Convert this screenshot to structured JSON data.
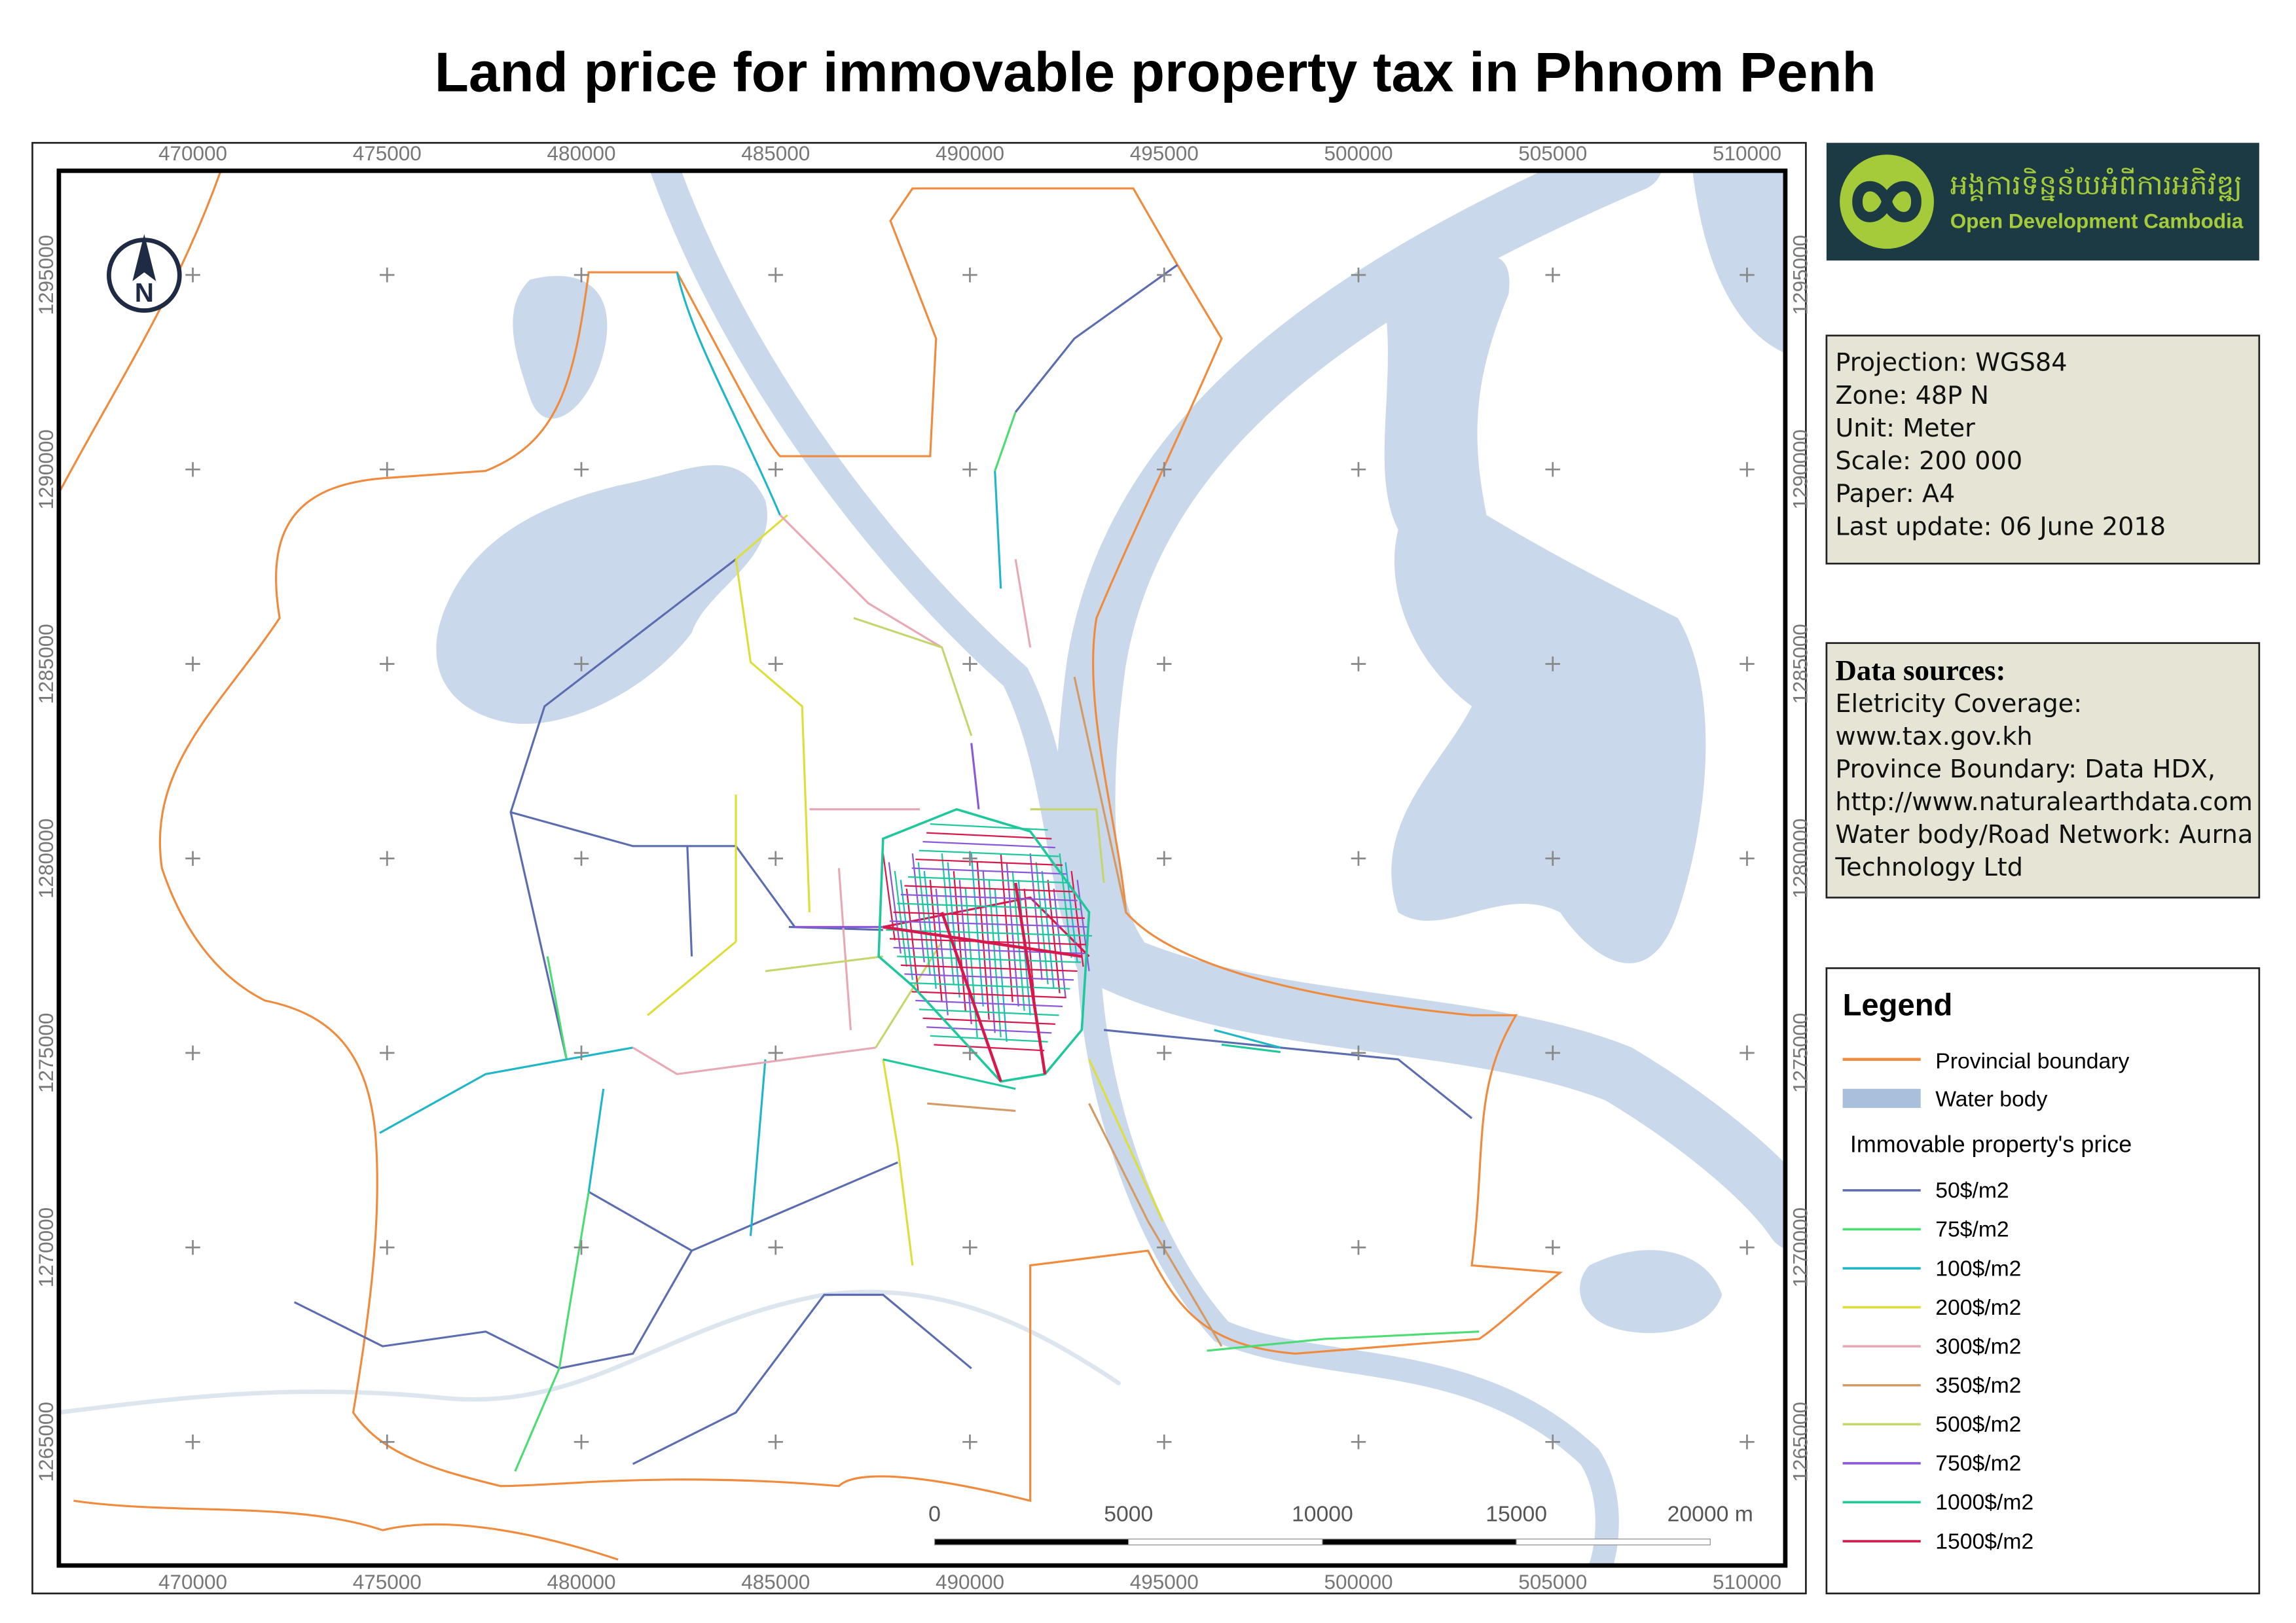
{
  "title": "Land price for immovable property tax in Phnom Penh",
  "map": {
    "x_ticks": [
      470000,
      475000,
      480000,
      485000,
      490000,
      495000,
      500000,
      505000,
      510000
    ],
    "y_ticks": [
      1265000,
      1270000,
      1275000,
      1280000,
      1285000,
      1290000,
      1295000
    ]
  },
  "logo": {
    "khmer": "អង្គការទិន្នន័យអំពីការអភិវឌ្ឍ",
    "name": "Open Development Cambodia"
  },
  "info": [
    "Projection: WGS84",
    "Zone: 48P N",
    "Unit: Meter",
    "Scale: 200 000",
    "Paper: A4",
    "Last update: 06 June 2018"
  ],
  "sources": {
    "title": "Data sources:",
    "lines": [
      "Eletricity Coverage:",
      "www.tax.gov.kh",
      "Province Boundary: Data HDX,",
      "http://www.naturalearthdata.com",
      "Water body/Road Network: Aurna",
      "Technology Ltd"
    ]
  },
  "legend": {
    "title": "Legend",
    "boundary": {
      "label": "Provincial boundary",
      "color": "#f08a3c"
    },
    "water": {
      "label": "Water body",
      "color": "#a9bfdc"
    },
    "subtitle": "Immovable property's price",
    "prices": [
      {
        "label": "50$/m2",
        "color": "#5b6db0"
      },
      {
        "label": "75$/m2",
        "color": "#4cdc74"
      },
      {
        "label": "100$/m2",
        "color": "#1fb6c8"
      },
      {
        "label": "200$/m2",
        "color": "#dede3a"
      },
      {
        "label": "300$/m2",
        "color": "#e8a8b4"
      },
      {
        "label": "350$/m2",
        "color": "#d49a64"
      },
      {
        "label": "500$/m2",
        "color": "#c6d66c"
      },
      {
        "label": "750$/m2",
        "color": "#8a58d8"
      },
      {
        "label": "1000$/m2",
        "color": "#1ec89c"
      },
      {
        "label": "1500$/m2",
        "color": "#d8184a"
      }
    ]
  },
  "scale_bar": [
    "0",
    "5000",
    "10000",
    "15000",
    "20000 m"
  ]
}
